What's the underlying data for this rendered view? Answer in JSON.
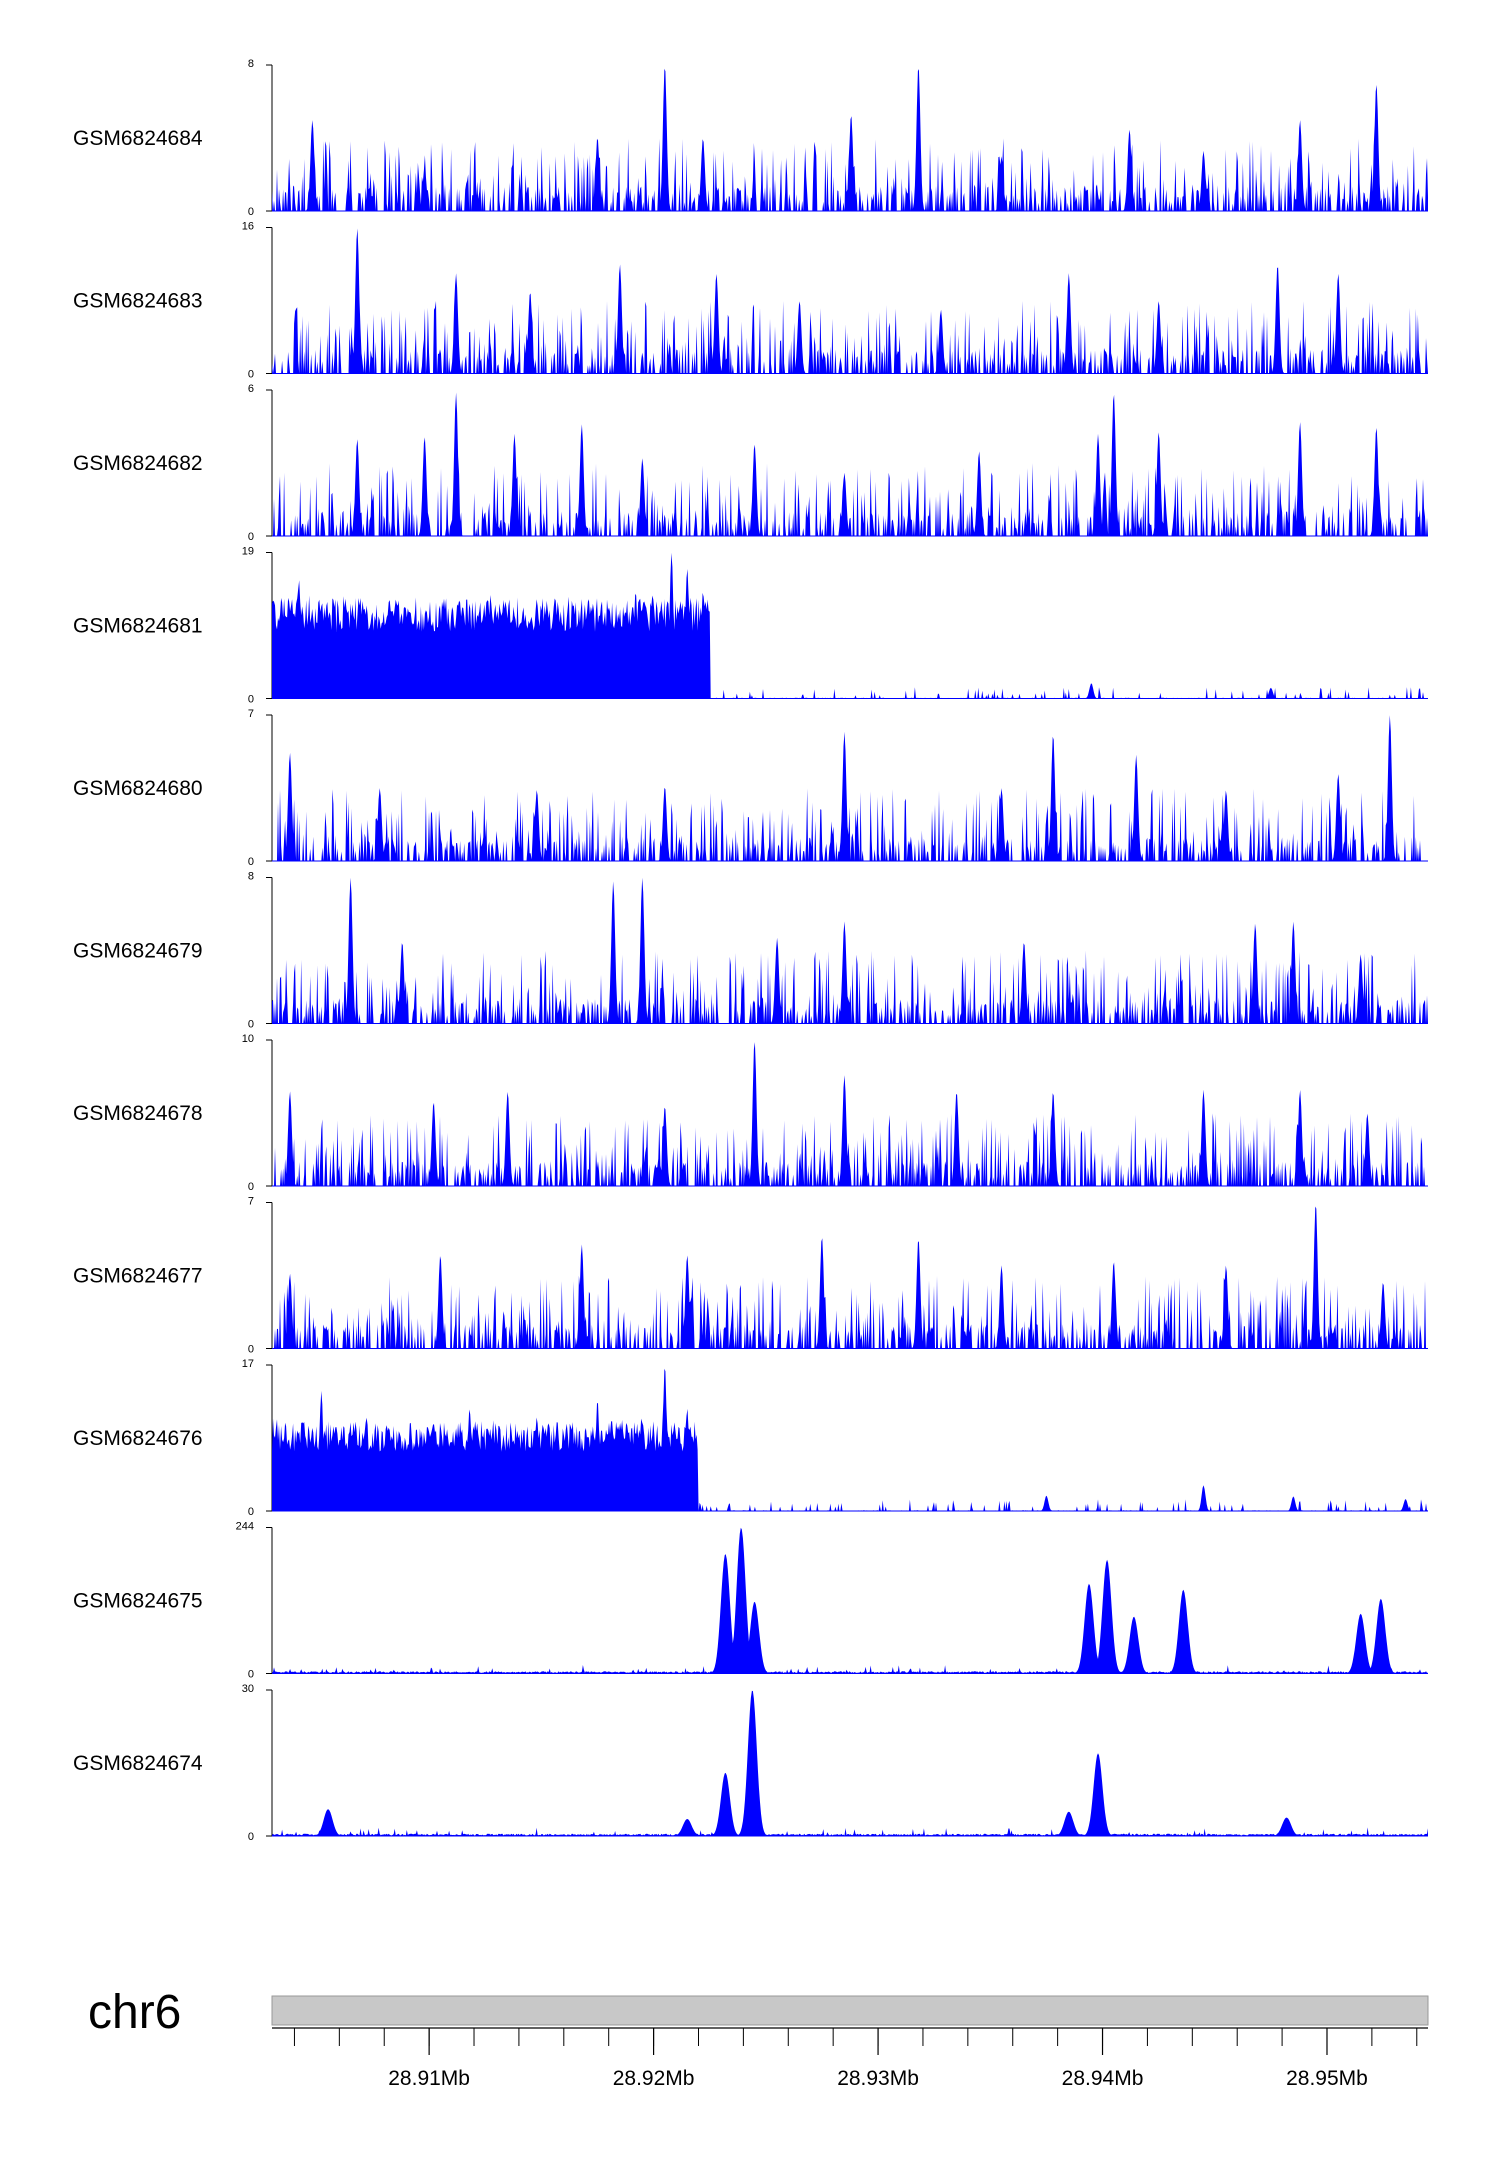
{
  "chart_data": {
    "type": "area",
    "chromosome": "chr6",
    "fill_color": "#0000ff",
    "ideogram_color": "#c8c8c8",
    "xlim": [
      28.903,
      28.9545
    ],
    "x_unit": "Mb",
    "x_ticks": [
      {
        "value": 28.91,
        "label": "28.91Mb"
      },
      {
        "value": 28.92,
        "label": "28.92Mb"
      },
      {
        "value": 28.93,
        "label": "28.93Mb"
      },
      {
        "value": 28.94,
        "label": "28.94Mb"
      },
      {
        "value": 28.95,
        "label": "28.95Mb"
      }
    ],
    "minor_tick_step": 0.002,
    "tracks": [
      {
        "name": "GSM6824684",
        "ylim": [
          0,
          8
        ],
        "y_labels": [
          "0",
          "8"
        ],
        "style": "sparse",
        "peaks": [
          [
            28.9048,
            5
          ],
          [
            28.9098,
            2.4
          ],
          [
            28.9175,
            4
          ],
          [
            28.9205,
            8
          ],
          [
            28.9222,
            4
          ],
          [
            28.9288,
            5.3
          ],
          [
            28.9318,
            8
          ],
          [
            28.9355,
            3
          ],
          [
            28.9412,
            4.5
          ],
          [
            28.9445,
            3.3
          ],
          [
            28.9488,
            5
          ],
          [
            28.9522,
            7
          ]
        ]
      },
      {
        "name": "GSM6824683",
        "ylim": [
          0,
          16
        ],
        "y_labels": [
          "0",
          "16"
        ],
        "style": "sparse",
        "peaks": [
          [
            28.9068,
            16
          ],
          [
            28.9112,
            11
          ],
          [
            28.9145,
            9
          ],
          [
            28.9185,
            12
          ],
          [
            28.9228,
            11
          ],
          [
            28.9265,
            8
          ],
          [
            28.9328,
            7
          ],
          [
            28.9385,
            11
          ],
          [
            28.9425,
            8
          ],
          [
            28.9478,
            12
          ],
          [
            28.9505,
            11
          ]
        ]
      },
      {
        "name": "GSM6824682",
        "ylim": [
          0,
          6
        ],
        "y_labels": [
          "0",
          "6"
        ],
        "style": "sparse",
        "peaks": [
          [
            28.9068,
            4
          ],
          [
            28.9098,
            4.1
          ],
          [
            28.9112,
            5.9
          ],
          [
            28.9138,
            4.2
          ],
          [
            28.9168,
            4.6
          ],
          [
            28.9195,
            3.2
          ],
          [
            28.9245,
            3.8
          ],
          [
            28.9285,
            2.6
          ],
          [
            28.9345,
            3.5
          ],
          [
            28.9398,
            4.2
          ],
          [
            28.9405,
            5.9
          ],
          [
            28.9425,
            4.3
          ],
          [
            28.9488,
            4.7
          ],
          [
            28.9522,
            4.5
          ]
        ]
      },
      {
        "name": "GSM6824681",
        "ylim": [
          0,
          19
        ],
        "y_labels": [
          "0",
          "19"
        ],
        "style": "block",
        "block": {
          "start": 28.903,
          "end": 28.9225,
          "base": 10
        },
        "peaks": [
          [
            28.9042,
            15.5
          ],
          [
            28.9078,
            10
          ],
          [
            28.9098,
            7
          ],
          [
            28.9118,
            12.5
          ],
          [
            28.9148,
            11.5
          ],
          [
            28.9172,
            12
          ],
          [
            28.9192,
            14
          ],
          [
            28.9208,
            19
          ],
          [
            28.9215,
            17
          ],
          [
            28.9222,
            14
          ],
          [
            28.9395,
            2
          ],
          [
            28.9475,
            1.4
          ]
        ]
      },
      {
        "name": "GSM6824680",
        "ylim": [
          0,
          7
        ],
        "y_labels": [
          "0",
          "7"
        ],
        "style": "sparse",
        "peaks": [
          [
            28.9038,
            5.2
          ],
          [
            28.9078,
            3.5
          ],
          [
            28.9148,
            3.4
          ],
          [
            28.9205,
            3.6
          ],
          [
            28.9285,
            6.2
          ],
          [
            28.9355,
            3.5
          ],
          [
            28.9378,
            6.1
          ],
          [
            28.9415,
            5.1
          ],
          [
            28.9455,
            3.4
          ],
          [
            28.9505,
            4.2
          ],
          [
            28.9528,
            7
          ]
        ]
      },
      {
        "name": "GSM6824679",
        "ylim": [
          0,
          8
        ],
        "y_labels": [
          "0",
          "8"
        ],
        "style": "sparse",
        "peaks": [
          [
            28.9065,
            8
          ],
          [
            28.9088,
            4.5
          ],
          [
            28.9182,
            7.8
          ],
          [
            28.9195,
            8
          ],
          [
            28.9255,
            4.7
          ],
          [
            28.9285,
            5.6
          ],
          [
            28.9365,
            4.5
          ],
          [
            28.9468,
            5.5
          ],
          [
            28.9485,
            5.6
          ],
          [
            28.9515,
            3.8
          ]
        ]
      },
      {
        "name": "GSM6824678",
        "ylim": [
          0,
          10
        ],
        "y_labels": [
          "0",
          "10"
        ],
        "style": "sparse",
        "peaks": [
          [
            28.9038,
            6.5
          ],
          [
            28.9102,
            5.8
          ],
          [
            28.9135,
            6.5
          ],
          [
            28.9205,
            5.5
          ],
          [
            28.9245,
            10
          ],
          [
            28.9285,
            7.6
          ],
          [
            28.9335,
            6.5
          ],
          [
            28.9378,
            6.5
          ],
          [
            28.9445,
            6.6
          ],
          [
            28.9488,
            6.6
          ],
          [
            28.9518,
            5
          ]
        ]
      },
      {
        "name": "GSM6824677",
        "ylim": [
          0,
          7
        ],
        "y_labels": [
          "0",
          "7"
        ],
        "style": "sparse",
        "peaks": [
          [
            28.9038,
            3.6
          ],
          [
            28.9105,
            4.5
          ],
          [
            28.9168,
            5
          ],
          [
            28.9215,
            4.5
          ],
          [
            28.9275,
            5.4
          ],
          [
            28.9318,
            5.3
          ],
          [
            28.9355,
            4
          ],
          [
            28.9405,
            4.2
          ],
          [
            28.9455,
            4
          ],
          [
            28.9495,
            7
          ],
          [
            28.9525,
            3.2
          ]
        ]
      },
      {
        "name": "GSM6824676",
        "ylim": [
          0,
          17
        ],
        "y_labels": [
          "0",
          "17"
        ],
        "style": "block",
        "block": {
          "start": 28.903,
          "end": 28.922,
          "base": 8
        },
        "peaks": [
          [
            28.9052,
            14
          ],
          [
            28.9072,
            11
          ],
          [
            28.9118,
            12
          ],
          [
            28.9148,
            11
          ],
          [
            28.9175,
            13
          ],
          [
            28.9205,
            17
          ],
          [
            28.9215,
            12
          ],
          [
            28.9375,
            1.8
          ],
          [
            28.9445,
            3
          ],
          [
            28.9485,
            1.7
          ],
          [
            28.9535,
            1.4
          ]
        ]
      },
      {
        "name": "GSM6824675",
        "ylim": [
          0,
          244
        ],
        "y_labels": [
          "0",
          "244"
        ],
        "style": "peaks",
        "peaks": [
          [
            28.9232,
            200
          ],
          [
            28.9239,
            244
          ],
          [
            28.9245,
            120
          ],
          [
            28.9394,
            150
          ],
          [
            28.9402,
            190
          ],
          [
            28.9414,
            95
          ],
          [
            28.9436,
            140
          ],
          [
            28.9515,
            100
          ],
          [
            28.9524,
            125
          ]
        ]
      },
      {
        "name": "GSM6824674",
        "ylim": [
          0,
          30
        ],
        "y_labels": [
          "0",
          "30"
        ],
        "style": "peaks",
        "peaks": [
          [
            28.9055,
            5.5
          ],
          [
            28.9215,
            3.5
          ],
          [
            28.9232,
            13
          ],
          [
            28.9244,
            30
          ],
          [
            28.9385,
            5
          ],
          [
            28.9398,
            17
          ],
          [
            28.9482,
            3.8
          ]
        ]
      }
    ]
  }
}
